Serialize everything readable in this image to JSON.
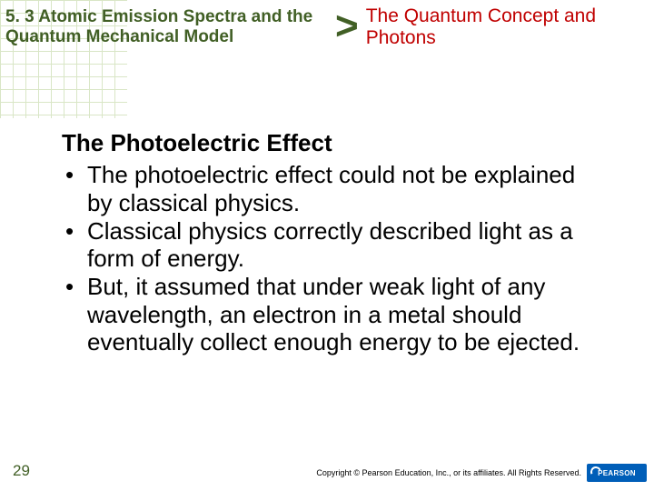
{
  "header": {
    "section_title": "5. 3 Atomic Emission Spectra and the Quantum Mechanical Model",
    "chevron": ">",
    "subsection_title": "The Quantum Concept and Photons",
    "section_color": "#415f25",
    "subsection_color": "#c00000",
    "section_fontsize": 19,
    "subsection_fontsize": 21
  },
  "content": {
    "slide_heading": "The Photoelectric Effect",
    "bullets": [
      "The photoelectric effect could not be explained by classical physics.",
      "Classical physics correctly described light as a form of energy.",
      "But, it assumed that under weak light of any wavelength, an electron in a metal should eventually collect enough energy to be ejected."
    ],
    "body_fontsize": 26,
    "text_color": "#000000"
  },
  "footer": {
    "slide_number": "29",
    "copyright": "Copyright © Pearson Education, Inc., or its affiliates. All Rights Reserved.",
    "logo_text": "PEARSON",
    "logo_bg": "#005eb8"
  },
  "background": {
    "grid_color": "#d9e6c6",
    "page_bg": "#ffffff"
  }
}
